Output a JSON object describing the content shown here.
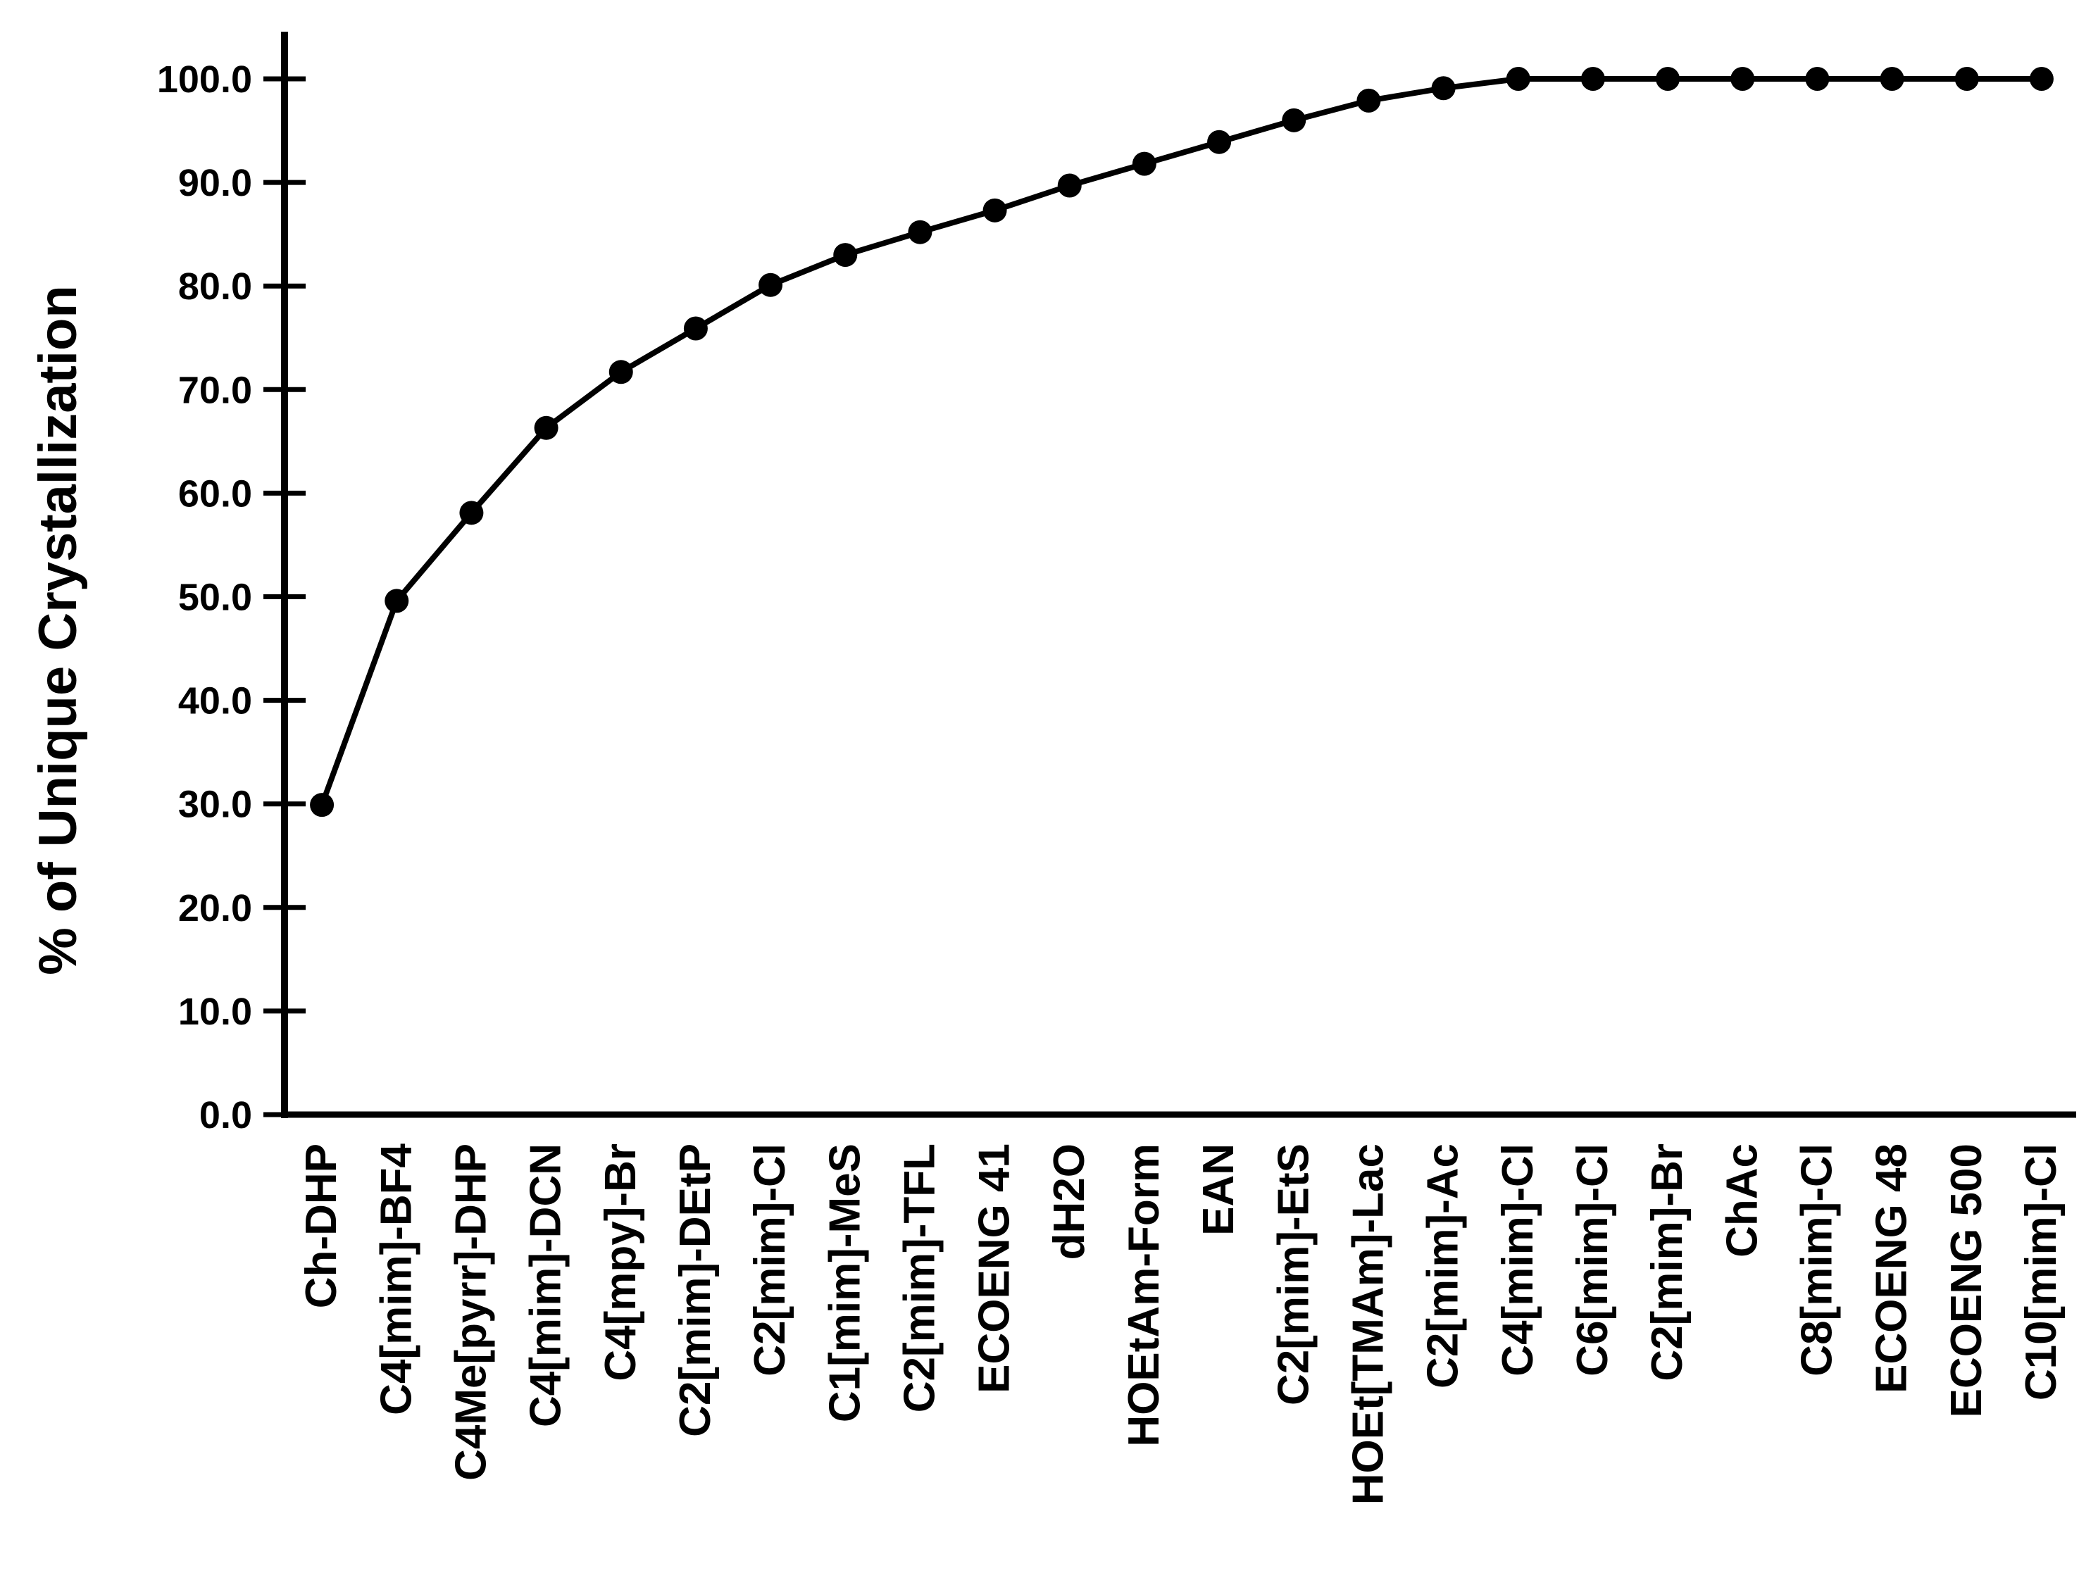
{
  "page": {
    "background": "#ffffff",
    "foreground": "#000000"
  },
  "chart_data": {
    "type": "line",
    "title": "",
    "xlabel": "",
    "ylabel": "% of Unique Crystallization",
    "ylim": [
      0,
      100
    ],
    "grid": false,
    "legend": "none",
    "marker": "filled-circle",
    "line_color": "#000000",
    "marker_color": "#000000",
    "ytick_labels": [
      "0.0",
      "10.0",
      "20.0",
      "30.0",
      "40.0",
      "50.0",
      "60.0",
      "70.0",
      "80.0",
      "90.0",
      "100.0"
    ],
    "ytick_values": [
      0,
      10,
      20,
      30,
      40,
      50,
      60,
      70,
      80,
      90,
      100
    ],
    "categories": [
      "Ch-DHP",
      "C4[mim]-BF4",
      "C4Me[pyrr]-DHP",
      "C4[mim]-DCN",
      "C4[mpy]-Br",
      "C2[mim]-DEtP",
      "C2[mim]-Cl",
      "C1[mim]-MeS",
      "C2[mim]-TFL",
      "ECOENG 41",
      "dH2O",
      "HOEtAm-Form",
      "EAN",
      "C2[mim]-EtS",
      "HOEt[TMAm]-Lac",
      "C2[mim]-Ac",
      "C4[mim]-Cl",
      "C6[mim]-Cl",
      "C2[mim]-Br",
      "ChAc",
      "C8[mim]-Cl",
      "ECOENG 48",
      "ECOENG 500",
      "C10[mim]-Cl"
    ],
    "values": [
      29.9,
      49.6,
      58.1,
      66.3,
      71.7,
      75.9,
      80.1,
      83.0,
      85.2,
      87.3,
      89.7,
      91.8,
      93.9,
      96.0,
      97.9,
      99.1,
      100.0,
      100.0,
      100.0,
      100.0,
      100.0,
      100.0,
      100.0,
      100.0
    ]
  }
}
